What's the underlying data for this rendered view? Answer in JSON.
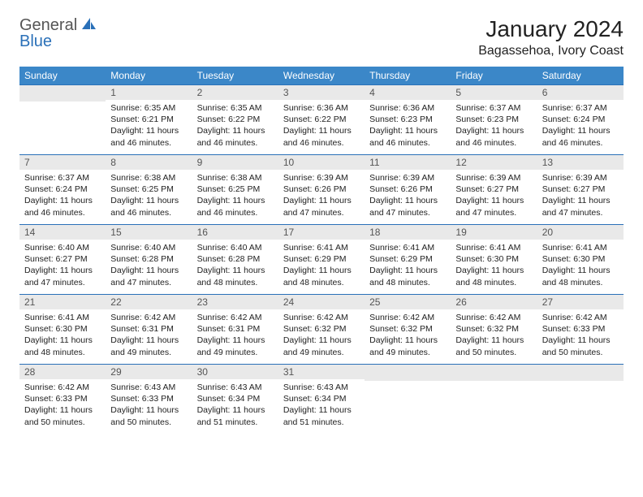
{
  "brand": {
    "part1": "General",
    "part2": "Blue"
  },
  "title": "January 2024",
  "location": "Bagassehoa, Ivory Coast",
  "colors": {
    "header_bg": "#3b87c8",
    "header_text": "#ffffff",
    "daynum_bg": "#e9e9e9",
    "row_divider": "#2a70b8",
    "brand_blue": "#2a70b8"
  },
  "weekdays": [
    "Sunday",
    "Monday",
    "Tuesday",
    "Wednesday",
    "Thursday",
    "Friday",
    "Saturday"
  ],
  "weeks": [
    [
      {
        "n": "",
        "sr": "",
        "ss": "",
        "dl": ""
      },
      {
        "n": "1",
        "sr": "Sunrise: 6:35 AM",
        "ss": "Sunset: 6:21 PM",
        "dl": "Daylight: 11 hours and 46 minutes."
      },
      {
        "n": "2",
        "sr": "Sunrise: 6:35 AM",
        "ss": "Sunset: 6:22 PM",
        "dl": "Daylight: 11 hours and 46 minutes."
      },
      {
        "n": "3",
        "sr": "Sunrise: 6:36 AM",
        "ss": "Sunset: 6:22 PM",
        "dl": "Daylight: 11 hours and 46 minutes."
      },
      {
        "n": "4",
        "sr": "Sunrise: 6:36 AM",
        "ss": "Sunset: 6:23 PM",
        "dl": "Daylight: 11 hours and 46 minutes."
      },
      {
        "n": "5",
        "sr": "Sunrise: 6:37 AM",
        "ss": "Sunset: 6:23 PM",
        "dl": "Daylight: 11 hours and 46 minutes."
      },
      {
        "n": "6",
        "sr": "Sunrise: 6:37 AM",
        "ss": "Sunset: 6:24 PM",
        "dl": "Daylight: 11 hours and 46 minutes."
      }
    ],
    [
      {
        "n": "7",
        "sr": "Sunrise: 6:37 AM",
        "ss": "Sunset: 6:24 PM",
        "dl": "Daylight: 11 hours and 46 minutes."
      },
      {
        "n": "8",
        "sr": "Sunrise: 6:38 AM",
        "ss": "Sunset: 6:25 PM",
        "dl": "Daylight: 11 hours and 46 minutes."
      },
      {
        "n": "9",
        "sr": "Sunrise: 6:38 AM",
        "ss": "Sunset: 6:25 PM",
        "dl": "Daylight: 11 hours and 46 minutes."
      },
      {
        "n": "10",
        "sr": "Sunrise: 6:39 AM",
        "ss": "Sunset: 6:26 PM",
        "dl": "Daylight: 11 hours and 47 minutes."
      },
      {
        "n": "11",
        "sr": "Sunrise: 6:39 AM",
        "ss": "Sunset: 6:26 PM",
        "dl": "Daylight: 11 hours and 47 minutes."
      },
      {
        "n": "12",
        "sr": "Sunrise: 6:39 AM",
        "ss": "Sunset: 6:27 PM",
        "dl": "Daylight: 11 hours and 47 minutes."
      },
      {
        "n": "13",
        "sr": "Sunrise: 6:39 AM",
        "ss": "Sunset: 6:27 PM",
        "dl": "Daylight: 11 hours and 47 minutes."
      }
    ],
    [
      {
        "n": "14",
        "sr": "Sunrise: 6:40 AM",
        "ss": "Sunset: 6:27 PM",
        "dl": "Daylight: 11 hours and 47 minutes."
      },
      {
        "n": "15",
        "sr": "Sunrise: 6:40 AM",
        "ss": "Sunset: 6:28 PM",
        "dl": "Daylight: 11 hours and 47 minutes."
      },
      {
        "n": "16",
        "sr": "Sunrise: 6:40 AM",
        "ss": "Sunset: 6:28 PM",
        "dl": "Daylight: 11 hours and 48 minutes."
      },
      {
        "n": "17",
        "sr": "Sunrise: 6:41 AM",
        "ss": "Sunset: 6:29 PM",
        "dl": "Daylight: 11 hours and 48 minutes."
      },
      {
        "n": "18",
        "sr": "Sunrise: 6:41 AM",
        "ss": "Sunset: 6:29 PM",
        "dl": "Daylight: 11 hours and 48 minutes."
      },
      {
        "n": "19",
        "sr": "Sunrise: 6:41 AM",
        "ss": "Sunset: 6:30 PM",
        "dl": "Daylight: 11 hours and 48 minutes."
      },
      {
        "n": "20",
        "sr": "Sunrise: 6:41 AM",
        "ss": "Sunset: 6:30 PM",
        "dl": "Daylight: 11 hours and 48 minutes."
      }
    ],
    [
      {
        "n": "21",
        "sr": "Sunrise: 6:41 AM",
        "ss": "Sunset: 6:30 PM",
        "dl": "Daylight: 11 hours and 48 minutes."
      },
      {
        "n": "22",
        "sr": "Sunrise: 6:42 AM",
        "ss": "Sunset: 6:31 PM",
        "dl": "Daylight: 11 hours and 49 minutes."
      },
      {
        "n": "23",
        "sr": "Sunrise: 6:42 AM",
        "ss": "Sunset: 6:31 PM",
        "dl": "Daylight: 11 hours and 49 minutes."
      },
      {
        "n": "24",
        "sr": "Sunrise: 6:42 AM",
        "ss": "Sunset: 6:32 PM",
        "dl": "Daylight: 11 hours and 49 minutes."
      },
      {
        "n": "25",
        "sr": "Sunrise: 6:42 AM",
        "ss": "Sunset: 6:32 PM",
        "dl": "Daylight: 11 hours and 49 minutes."
      },
      {
        "n": "26",
        "sr": "Sunrise: 6:42 AM",
        "ss": "Sunset: 6:32 PM",
        "dl": "Daylight: 11 hours and 50 minutes."
      },
      {
        "n": "27",
        "sr": "Sunrise: 6:42 AM",
        "ss": "Sunset: 6:33 PM",
        "dl": "Daylight: 11 hours and 50 minutes."
      }
    ],
    [
      {
        "n": "28",
        "sr": "Sunrise: 6:42 AM",
        "ss": "Sunset: 6:33 PM",
        "dl": "Daylight: 11 hours and 50 minutes."
      },
      {
        "n": "29",
        "sr": "Sunrise: 6:43 AM",
        "ss": "Sunset: 6:33 PM",
        "dl": "Daylight: 11 hours and 50 minutes."
      },
      {
        "n": "30",
        "sr": "Sunrise: 6:43 AM",
        "ss": "Sunset: 6:34 PM",
        "dl": "Daylight: 11 hours and 51 minutes."
      },
      {
        "n": "31",
        "sr": "Sunrise: 6:43 AM",
        "ss": "Sunset: 6:34 PM",
        "dl": "Daylight: 11 hours and 51 minutes."
      },
      {
        "n": "",
        "sr": "",
        "ss": "",
        "dl": ""
      },
      {
        "n": "",
        "sr": "",
        "ss": "",
        "dl": ""
      },
      {
        "n": "",
        "sr": "",
        "ss": "",
        "dl": ""
      }
    ]
  ]
}
